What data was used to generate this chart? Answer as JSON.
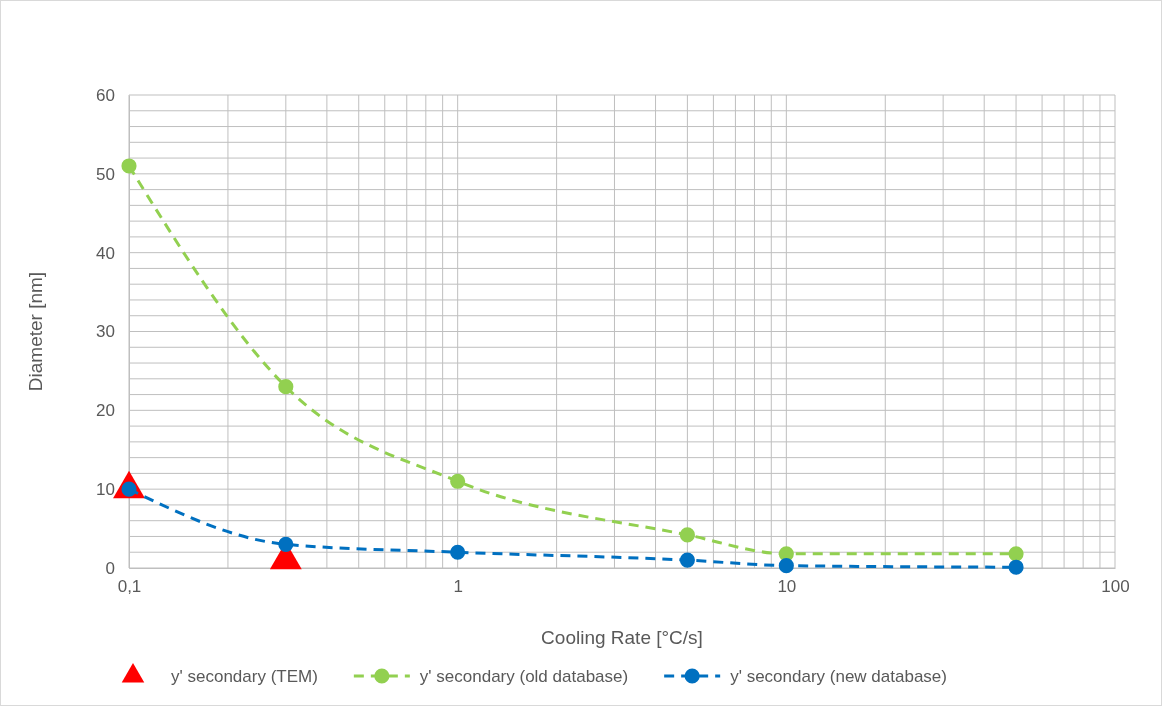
{
  "chart_data": {
    "type": "line",
    "xlabel": "Cooling Rate [°C/s]",
    "ylabel": "Diameter [nm]",
    "log": "x",
    "grid": true,
    "legend": "bottom",
    "xlim": [
      0.1,
      100
    ],
    "xticks": [
      {
        "value": 0.1,
        "label": "0,1"
      },
      {
        "value": 0.2,
        "label": null
      },
      {
        "value": 0.3,
        "label": null
      },
      {
        "value": 0.4,
        "label": null
      },
      {
        "value": 0.5,
        "label": null
      },
      {
        "value": 0.6,
        "label": null
      },
      {
        "value": 0.7,
        "label": null
      },
      {
        "value": 0.8,
        "label": null
      },
      {
        "value": 0.9,
        "label": null
      },
      1,
      {
        "value": 2,
        "label": null
      },
      {
        "value": 3,
        "label": null
      },
      {
        "value": 4,
        "label": null
      },
      {
        "value": 5,
        "label": null
      },
      {
        "value": 6,
        "label": null
      },
      {
        "value": 7,
        "label": null
      },
      {
        "value": 8,
        "label": null
      },
      {
        "value": 9,
        "label": null
      },
      10,
      {
        "value": 20,
        "label": null
      },
      {
        "value": 30,
        "label": null
      },
      {
        "value": 40,
        "label": null
      },
      {
        "value": 50,
        "label": null
      },
      {
        "value": 60,
        "label": null
      },
      {
        "value": 70,
        "label": null
      },
      {
        "value": 80,
        "label": null
      },
      {
        "value": 90,
        "label": null
      },
      100
    ],
    "ylim": [
      0,
      60
    ],
    "yticks": [
      0,
      {
        "value": 2,
        "label": null
      },
      {
        "value": 4,
        "label": null
      },
      {
        "value": 6,
        "label": null
      },
      {
        "value": 8,
        "label": null
      },
      10,
      {
        "value": 12,
        "label": null
      },
      {
        "value": 14,
        "label": null
      },
      {
        "value": 16,
        "label": null
      },
      {
        "value": 18,
        "label": null
      },
      20,
      {
        "value": 22,
        "label": null
      },
      {
        "value": 24,
        "label": null
      },
      {
        "value": 26,
        "label": null
      },
      {
        "value": 28,
        "label": null
      },
      30,
      {
        "value": 32,
        "label": null
      },
      {
        "value": 34,
        "label": null
      },
      {
        "value": 36,
        "label": null
      },
      {
        "value": 38,
        "label": null
      },
      40,
      {
        "value": 42,
        "label": null
      },
      {
        "value": 44,
        "label": null
      },
      {
        "value": 46,
        "label": null
      },
      {
        "value": 48,
        "label": null
      },
      50,
      {
        "value": 52,
        "label": null
      },
      {
        "value": 54,
        "label": null
      },
      {
        "value": 56,
        "label": null
      },
      {
        "value": 58,
        "label": null
      },
      60
    ],
    "series": [
      {
        "name": "y' secondary (TEM)",
        "type": "scatter",
        "marker": "triangle",
        "color": "#ff0000",
        "x": [
          0.1,
          0.3
        ],
        "values": [
          10,
          1
        ]
      },
      {
        "name": "y' secondary (old database)",
        "marker": "circle",
        "line_style": "dashed",
        "color": "#92d050",
        "x": [
          0.1,
          0.3,
          1,
          5,
          10,
          50
        ],
        "values": [
          51,
          23,
          11,
          4.2,
          1.8,
          1.8
        ]
      },
      {
        "name": "y' secondary (new database)",
        "marker": "circle",
        "line_style": "dashed",
        "color": "#0070c0",
        "x": [
          0.1,
          0.3,
          1,
          5,
          10,
          50
        ],
        "values": [
          10,
          3,
          2,
          1,
          0.3,
          0.1
        ]
      }
    ]
  }
}
